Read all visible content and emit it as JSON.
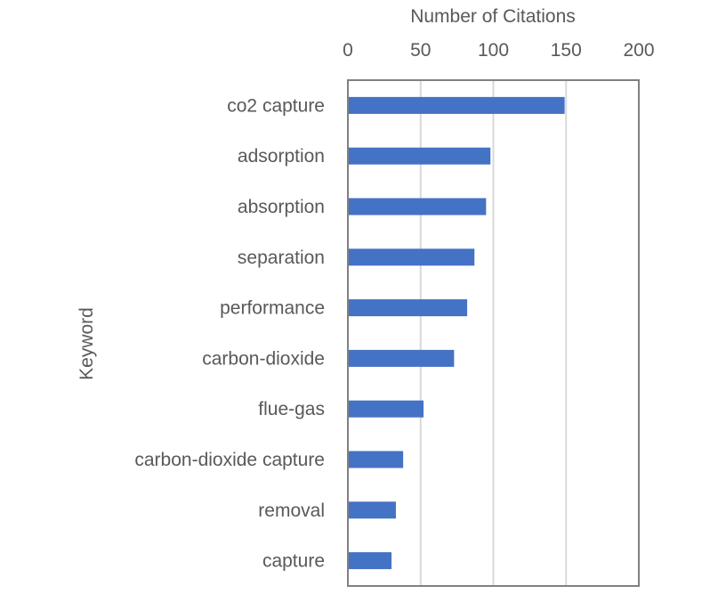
{
  "chart_data": {
    "type": "bar",
    "orientation": "horizontal",
    "title": "",
    "xlabel": "Number of Citations",
    "ylabel": "Keyword",
    "xaxis_position": "top",
    "xlim": [
      0,
      200
    ],
    "xticks": [
      0,
      50,
      100,
      150,
      200
    ],
    "grid": "vertical major gridlines",
    "categories": [
      "co2 capture",
      "adsorption",
      "absorption",
      "separation",
      "performance",
      "carbon-dioxide",
      "flue-gas",
      "carbon-dioxide capture",
      "removal",
      "capture"
    ],
    "values": [
      149,
      98,
      95,
      87,
      82,
      73,
      52,
      38,
      33,
      30
    ],
    "colors": {
      "bar": "#4472C4",
      "grid": "#d9d9d9",
      "frame": "#808080",
      "text": "#595959"
    }
  }
}
